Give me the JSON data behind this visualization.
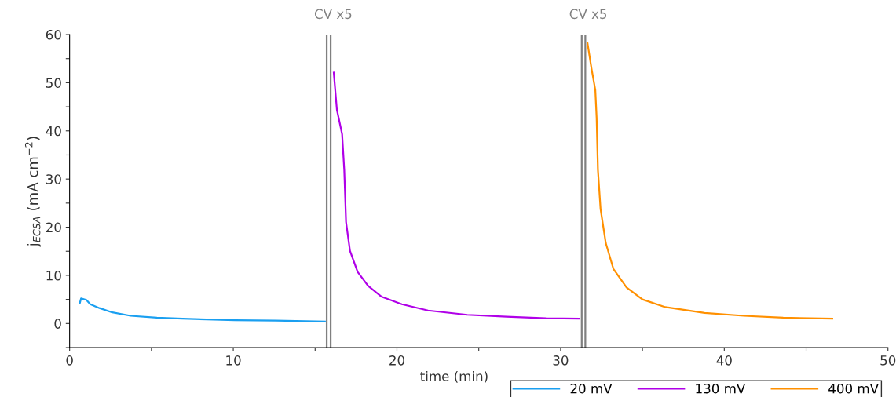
{
  "chart_data": {
    "type": "line",
    "xlabel": "time (min)",
    "ylabel": "j$_{ECSA}$ (mA cm$^{−2}$)",
    "xlim": [
      0,
      50
    ],
    "ylim": [
      -5,
      60
    ],
    "xticks": [
      0,
      {
        "value": 5,
        "label": null
      },
      10,
      {
        "value": 15,
        "label": null
      },
      20,
      {
        "value": 25,
        "label": null
      },
      30,
      {
        "value": 35,
        "label": null
      },
      40,
      {
        "value": 45,
        "label": null
      },
      50
    ],
    "yticks": [
      {
        "value": -5,
        "label": null
      },
      0,
      {
        "value": 5,
        "label": null
      },
      10,
      {
        "value": 15,
        "label": null
      },
      20,
      {
        "value": 25,
        "label": null
      },
      30,
      {
        "value": 35,
        "label": null
      },
      40,
      {
        "value": 45,
        "label": null
      },
      50,
      {
        "value": 55,
        "label": null
      },
      60
    ],
    "grid": false,
    "legend": "bottom right",
    "line_style": "solid",
    "marker": "none",
    "series": [
      {
        "name": "20 mV",
        "color": "#1a9ff0",
        "x": [
          0.62,
          0.7,
          1.02,
          1.26,
          1.82,
          2.61,
          3.73,
          5.33,
          6.9,
          10.1,
          12.6,
          15.6
        ],
        "values": [
          4.2,
          5.2,
          4.9,
          4.0,
          3.2,
          2.3,
          1.6,
          1.2,
          1.0,
          0.7,
          0.6,
          0.4
        ]
      },
      {
        "name": "130 mV",
        "color": "#b000e8",
        "x": [
          16.14,
          16.33,
          16.65,
          16.78,
          16.89,
          17.13,
          17.6,
          18.24,
          19.04,
          20.3,
          21.9,
          24.3,
          26.7,
          29.1,
          31.13
        ],
        "values": [
          52.1,
          44.4,
          39.3,
          31.9,
          21.1,
          15.1,
          10.7,
          7.8,
          5.6,
          4.0,
          2.7,
          1.8,
          1.4,
          1.1,
          1.0
        ]
      },
      {
        "name": "400 mV",
        "color": "#ff9000",
        "x": [
          31.64,
          31.88,
          32.12,
          32.2,
          32.28,
          32.44,
          32.76,
          33.23,
          34.03,
          35.0,
          36.4,
          38.8,
          41.2,
          43.6,
          46.6
        ],
        "values": [
          58.3,
          53.1,
          48.5,
          42.8,
          31.9,
          23.8,
          16.7,
          11.3,
          7.5,
          5.0,
          3.4,
          2.2,
          1.6,
          1.2,
          1.0
        ]
      }
    ],
    "ref_lines": [
      {
        "axis": "x",
        "value": 15.71,
        "label": "CV x5",
        "color": "#808080"
      },
      {
        "axis": "x",
        "value": 15.95,
        "label": null,
        "color": "#808080"
      },
      {
        "axis": "x",
        "value": 31.29,
        "label": "CV x5",
        "color": "#808080"
      },
      {
        "axis": "x",
        "value": 31.51,
        "label": null,
        "color": "#808080"
      }
    ]
  }
}
